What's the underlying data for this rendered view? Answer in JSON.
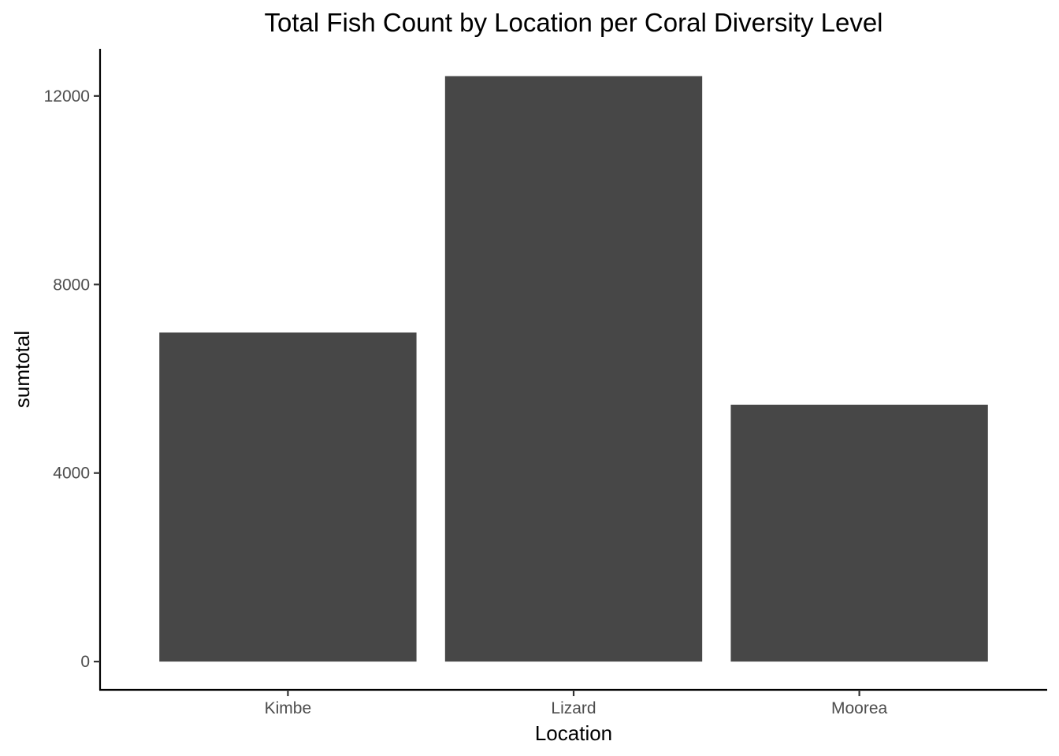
{
  "chart_data": {
    "type": "bar",
    "title": "Total Fish Count by Location per Coral Diversity Level",
    "xlabel": "Location",
    "ylabel": "sumtotal",
    "categories": [
      "Kimbe",
      "Lizard",
      "Moorea"
    ],
    "values": [
      6980,
      12420,
      5450
    ],
    "ylim": [
      -600,
      13000
    ],
    "yticks": [
      0,
      4000,
      8000,
      12000
    ],
    "grid": false,
    "legend": "none",
    "bar_color": "#474747"
  }
}
